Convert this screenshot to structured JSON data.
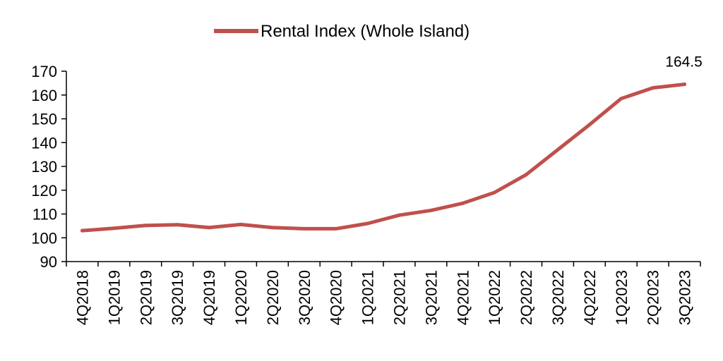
{
  "chart_data": {
    "type": "line",
    "categories": [
      "4Q2018",
      "1Q2019",
      "2Q2019",
      "3Q2019",
      "4Q2019",
      "1Q2020",
      "2Q2020",
      "3Q2020",
      "4Q2020",
      "1Q2021",
      "2Q2021",
      "3Q2021",
      "4Q2021",
      "1Q2022",
      "2Q2022",
      "3Q2022",
      "4Q2022",
      "1Q2023",
      "2Q2023",
      "3Q2023"
    ],
    "series": [
      {
        "name": "Rental Index (Whole Island)",
        "values": [
          103.0,
          104.0,
          105.2,
          105.5,
          104.3,
          105.6,
          104.3,
          103.8,
          103.8,
          106.0,
          109.5,
          111.5,
          114.5,
          119.0,
          126.5,
          137.0,
          147.5,
          158.5,
          163.0,
          164.5
        ],
        "color": "#c0504d"
      }
    ],
    "ylim": [
      90,
      170
    ],
    "yticks": [
      90,
      100,
      110,
      120,
      130,
      140,
      150,
      160,
      170
    ],
    "ytick_labels": [
      "90",
      "100",
      "110",
      "120",
      "130",
      "140",
      "150",
      "160",
      "170"
    ],
    "data_labels": [
      {
        "index": 19,
        "text": "164.5"
      }
    ],
    "legend_position": "top-center",
    "grid": false,
    "xlabel": "",
    "ylabel": ""
  }
}
